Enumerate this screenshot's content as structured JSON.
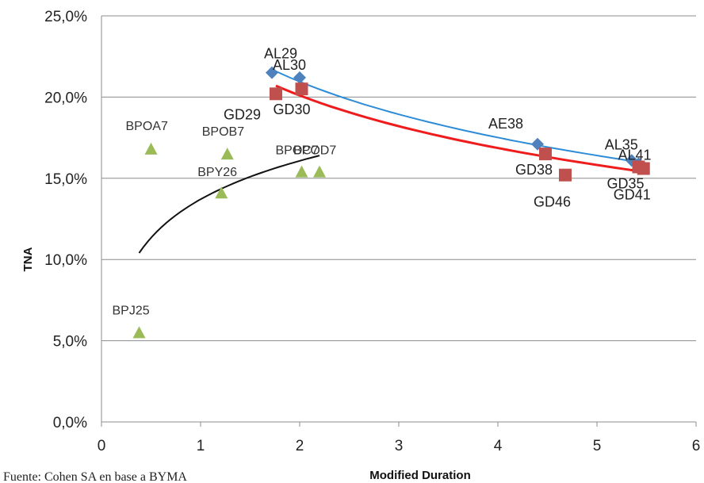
{
  "chart_data": {
    "type": "scatter",
    "title": "",
    "xlabel": "Modified Duration",
    "ylabel": "TNA",
    "xlim": [
      0,
      6
    ],
    "ylim": [
      0,
      25
    ],
    "x_ticks": [
      "0",
      "1",
      "2",
      "3",
      "4",
      "5",
      "6"
    ],
    "y_ticks": [
      "0,0%",
      "5,0%",
      "10,0%",
      "15,0%",
      "20,0%",
      "25,0%"
    ],
    "grid": "horizontal",
    "source_note": "Fuente: Cohen SA en base a BYMA",
    "series": [
      {
        "color": "#4f81bd",
        "marker": "diamond",
        "points": [
          {
            "label": "AL29",
            "x": 1.72,
            "y": 21.5
          },
          {
            "label": "AL30",
            "x": 2.0,
            "y": 21.2
          },
          {
            "label": "AE38",
            "x": 4.4,
            "y": 17.1
          },
          {
            "label": "AL35",
            "x": 5.35,
            "y": 16.1
          },
          {
            "label": "AL41",
            "x": 5.42,
            "y": 15.9
          }
        ],
        "trend": {
          "from_x": 1.72,
          "to_x": 5.42,
          "from_y": 21.7,
          "to_y": 16.0
        }
      },
      {
        "color": "#c0504d",
        "marker": "square",
        "points": [
          {
            "label": "GD29",
            "x": 1.76,
            "y": 20.2
          },
          {
            "label": "GD30",
            "x": 2.02,
            "y": 20.5
          },
          {
            "label": "GD38",
            "x": 4.48,
            "y": 16.5
          },
          {
            "label": "GD46",
            "x": 4.68,
            "y": 15.2
          },
          {
            "label": "GD35",
            "x": 5.42,
            "y": 15.7
          },
          {
            "label": "GD41",
            "x": 5.47,
            "y": 15.6
          }
        ],
        "trend": {
          "from_x": 1.76,
          "to_x": 5.47,
          "from_y": 20.7,
          "to_y": 15.4
        }
      },
      {
        "color": "#9bbb59",
        "marker": "triangle",
        "points": [
          {
            "label": "BPOA7",
            "x": 0.5,
            "y": 16.8
          },
          {
            "label": "BPOB7",
            "x": 1.27,
            "y": 16.5
          },
          {
            "label": "BPY26",
            "x": 1.21,
            "y": 14.1
          },
          {
            "label": "BPOC7",
            "x": 2.02,
            "y": 15.4
          },
          {
            "label": "BPOD7",
            "x": 2.2,
            "y": 15.4
          },
          {
            "label": "BPJ25",
            "x": 0.38,
            "y": 5.5
          }
        ],
        "trend": {
          "from_x": 0.38,
          "to_x": 2.2,
          "from_y": 10.4,
          "to_y": 16.4
        }
      }
    ]
  }
}
